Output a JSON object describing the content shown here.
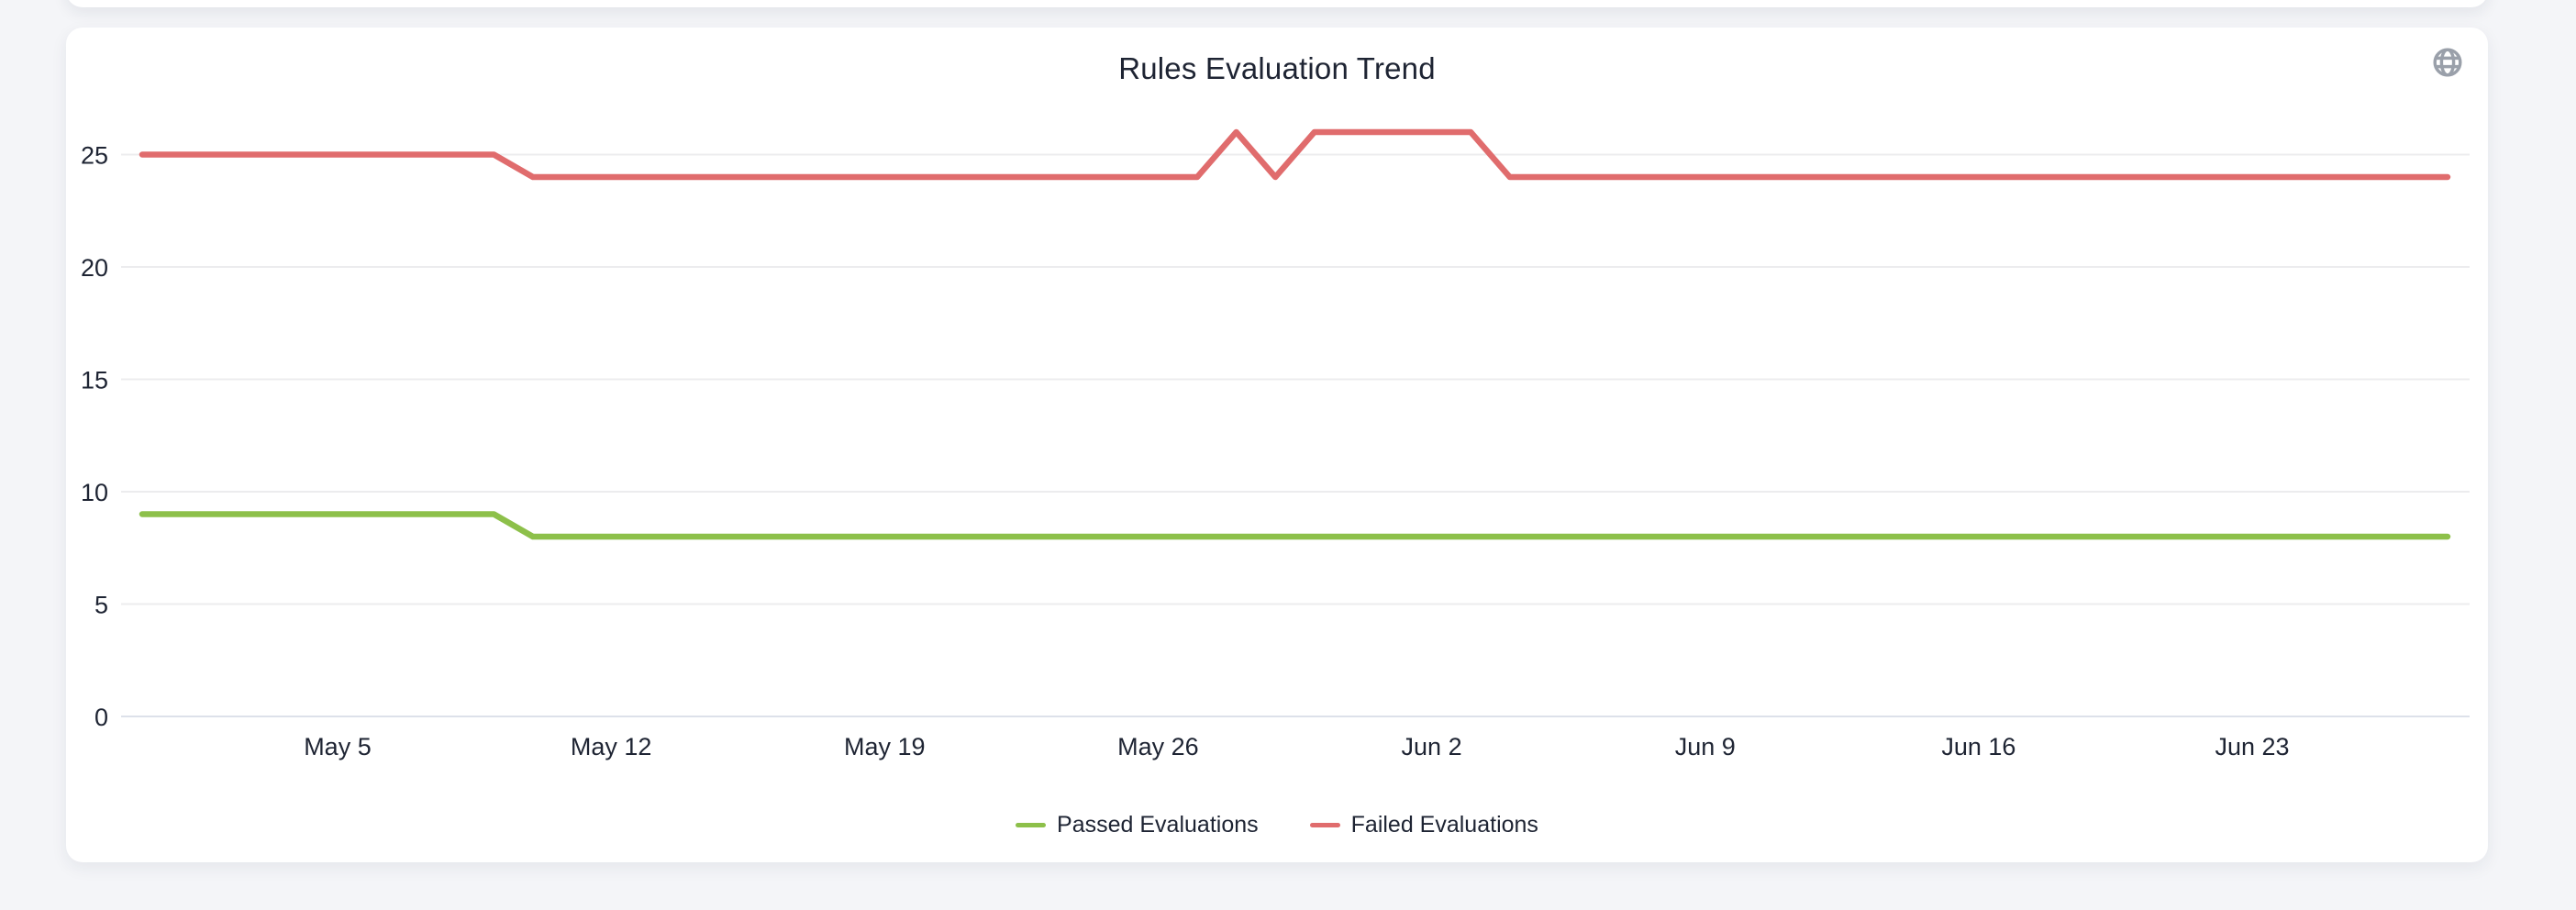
{
  "page": {
    "background_color": "#f4f5f8",
    "card_color": "#ffffff"
  },
  "card": {
    "corner_icon": "globe"
  },
  "chart_data": {
    "type": "line",
    "title": "Rules Evaluation Trend",
    "xlabel": "",
    "ylabel": "",
    "grid": "horizontal",
    "legend_position": "bottom",
    "y_ticks": [
      0,
      5,
      10,
      15,
      20,
      25
    ],
    "ylim": [
      0,
      27
    ],
    "x_tick_labels": [
      "May 5",
      "May 12",
      "May 19",
      "May 26",
      "Jun 2",
      "Jun 9",
      "Jun 16",
      "Jun 23"
    ],
    "x_tick_days": [
      5,
      12,
      19,
      26,
      33,
      40,
      47,
      54
    ],
    "x_span_days": 59,
    "x_unit": "day (daily points, weekly tick labels)",
    "series": [
      {
        "name": "Passed Evaluations",
        "color": "#8dc04a",
        "values": [
          9,
          9,
          9,
          9,
          9,
          9,
          9,
          9,
          9,
          9,
          8,
          8,
          8,
          8,
          8,
          8,
          8,
          8,
          8,
          8,
          8,
          8,
          8,
          8,
          8,
          8,
          8,
          8,
          8,
          8,
          8,
          8,
          8,
          8,
          8,
          8,
          8,
          8,
          8,
          8,
          8,
          8,
          8,
          8,
          8,
          8,
          8,
          8,
          8,
          8,
          8,
          8,
          8,
          8,
          8,
          8,
          8,
          8,
          8,
          8
        ]
      },
      {
        "name": "Failed Evaluations",
        "color": "#e06c6d",
        "values": [
          25,
          25,
          25,
          25,
          25,
          25,
          25,
          25,
          25,
          25,
          24,
          24,
          24,
          24,
          24,
          24,
          24,
          24,
          24,
          24,
          24,
          24,
          24,
          24,
          24,
          24,
          24,
          24,
          26,
          24,
          26,
          26,
          26,
          26,
          26,
          24,
          24,
          24,
          24,
          24,
          24,
          24,
          24,
          24,
          24,
          24,
          24,
          24,
          24,
          24,
          24,
          24,
          24,
          24,
          24,
          24,
          24,
          24,
          24,
          24
        ]
      }
    ],
    "colors": {
      "text": "#1e2433",
      "gridline": "#ececee",
      "axis_line": "#dde1ea",
      "icon": "#9aa0aa"
    }
  }
}
